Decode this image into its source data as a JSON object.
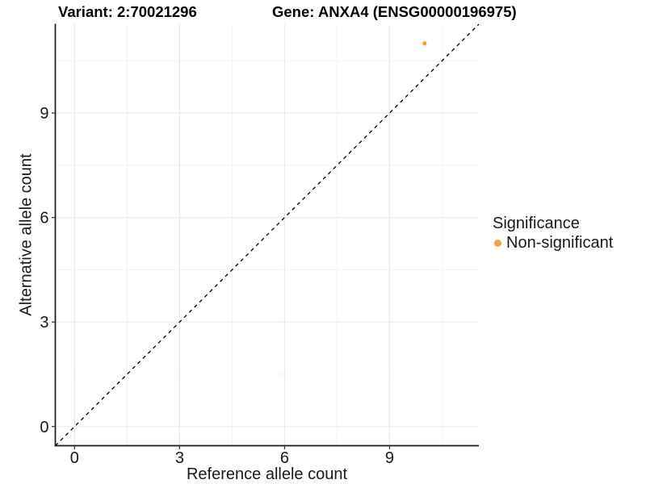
{
  "header": {
    "variant_title": "Variant: 2:70021296",
    "gene_title": "Gene: ANXA4 (ENSG00000196975)"
  },
  "chart_data": {
    "type": "scatter",
    "xlabel": "Reference allele count",
    "ylabel": "Alternative allele count",
    "xlim": [
      -0.55,
      11.55
    ],
    "ylim": [
      -0.55,
      11.55
    ],
    "x_ticks": [
      0,
      3,
      6,
      9
    ],
    "y_ticks": [
      0,
      3,
      6,
      9
    ],
    "x_minor_ticks": [
      1.5,
      4.5,
      7.5,
      10.5
    ],
    "y_minor_ticks": [
      1.5,
      4.5,
      7.5,
      10.5
    ],
    "grid": true,
    "points": [
      {
        "x": 10,
        "y": 11,
        "significance": "Non-significant"
      }
    ],
    "reference_line": {
      "type": "identity",
      "slope": 1,
      "intercept": 0,
      "style": "dashed",
      "color": "#000000"
    },
    "legend": {
      "title": "Significance",
      "position": "right",
      "entries": [
        {
          "label": "Non-significant",
          "color": "#F9A03F"
        }
      ]
    }
  },
  "colors": {
    "background": "#FFFFFF",
    "grid_major": "#E8E8E8",
    "grid_minor": "#F3F3F3",
    "axis_line": "#1A1A1A",
    "tick_mark": "#333333",
    "tick_label": "#1A1A1A",
    "point": "#F9A03F"
  }
}
